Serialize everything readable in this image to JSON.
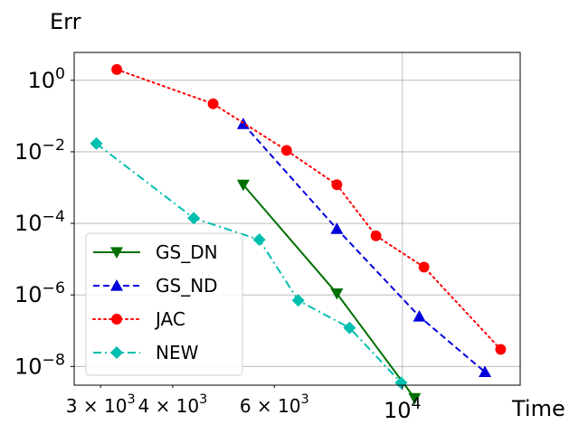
{
  "chart_data": {
    "type": "line",
    "xlabel": "Time",
    "ylabel": "Err",
    "xscale": "log",
    "yscale": "log",
    "xlim": [
      2700,
      16000
    ],
    "ylim": [
      3e-09,
      6.0
    ],
    "grid": true,
    "legend_position": "lower-left",
    "x_ticks": [
      {
        "value": 3000,
        "label": "3 × 10^3"
      },
      {
        "value": 4000,
        "label": "4 × 10^3"
      },
      {
        "value": 6000,
        "label": "6 × 10^3"
      },
      {
        "value": 10000,
        "label": "10^4"
      }
    ],
    "y_ticks": [
      {
        "value": 1,
        "label": "10^0"
      },
      {
        "value": 0.01,
        "label": "10^-2"
      },
      {
        "value": 0.0001,
        "label": "10^-4"
      },
      {
        "value": 1e-06,
        "label": "10^-6"
      },
      {
        "value": 1e-08,
        "label": "10^-8"
      }
    ],
    "series": [
      {
        "name": "GS_DN",
        "color": "#007000",
        "dash": "solid",
        "marker": "triangle-down",
        "x": [
          5300,
          7700,
          10500
        ],
        "y": [
          0.0012,
          1.1e-06,
          1.3e-09
        ]
      },
      {
        "name": "GS_ND",
        "color": "#0000dd",
        "dash": "dashed",
        "marker": "triangle-up",
        "x": [
          5300,
          7700,
          10700,
          13900
        ],
        "y": [
          0.06,
          7e-05,
          2.5e-07,
          7e-09
        ]
      },
      {
        "name": "JAC",
        "color": "#ff0000",
        "dash": "dotted",
        "marker": "circle",
        "x": [
          3200,
          4700,
          6300,
          7700,
          9000,
          10900,
          14800
        ],
        "y": [
          2.0,
          0.22,
          0.011,
          0.0012,
          4.5e-05,
          6e-06,
          3e-08
        ]
      },
      {
        "name": "NEW",
        "color": "#00bfae",
        "dash": "dashdot",
        "marker": "diamond",
        "x": [
          2950,
          4350,
          5650,
          6600,
          8100,
          9950
        ],
        "y": [
          0.017,
          0.00014,
          3.5e-05,
          7e-07,
          1.2e-07,
          3.5e-09
        ]
      }
    ]
  }
}
